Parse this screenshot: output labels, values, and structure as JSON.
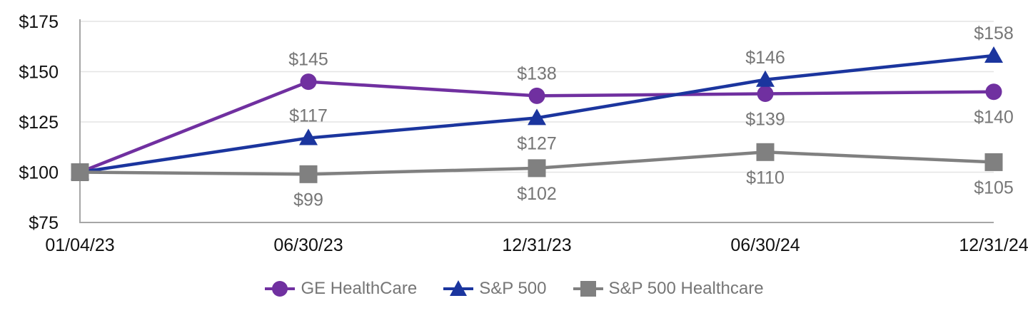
{
  "colors": {
    "axis_line": "#a6a6a6",
    "gridline": "#e4e4e4",
    "tick_text": "#111111",
    "data_label_text": "#767676",
    "ge_purple": "#7030a0",
    "sp500_blue": "#1b359e",
    "sp500_healthcare_gray": "#808080"
  },
  "chart_data": {
    "type": "line",
    "title": "",
    "xlabel": "",
    "ylabel": "",
    "grid": "horizontal",
    "legend_position": "bottom",
    "categories": [
      "01/04/23",
      "06/30/23",
      "12/31/23",
      "06/30/24",
      "12/31/24"
    ],
    "ylim": [
      75,
      175
    ],
    "yticks": [
      {
        "value": 175,
        "label": "$175"
      },
      {
        "value": 150,
        "label": "$150"
      },
      {
        "value": 125,
        "label": "$125"
      },
      {
        "value": 100,
        "label": "$100"
      },
      {
        "value": 75,
        "label": "$75"
      }
    ],
    "series": [
      {
        "name": "GE HealthCare",
        "color": "#7030a0",
        "marker": "circle",
        "values": [
          100,
          145,
          138,
          139,
          140
        ],
        "data_labels": [
          null,
          {
            "text": "$145",
            "position": "above"
          },
          {
            "text": "$138",
            "position": "above"
          },
          {
            "text": "$139",
            "position": "below"
          },
          {
            "text": "$140",
            "position": "below"
          }
        ]
      },
      {
        "name": "S&P 500",
        "color": "#1b359e",
        "marker": "triangle",
        "values": [
          100,
          117,
          127,
          146,
          158
        ],
        "data_labels": [
          null,
          {
            "text": "$117",
            "position": "above"
          },
          {
            "text": "$127",
            "position": "below"
          },
          {
            "text": "$146",
            "position": "above"
          },
          {
            "text": "$158",
            "position": "above"
          }
        ]
      },
      {
        "name": "S&P 500 Healthcare",
        "color": "#808080",
        "marker": "square",
        "values": [
          100,
          99,
          102,
          110,
          105
        ],
        "data_labels": [
          null,
          {
            "text": "$99",
            "position": "below"
          },
          {
            "text": "$102",
            "position": "below"
          },
          {
            "text": "$110",
            "position": "below"
          },
          {
            "text": "$105",
            "position": "below"
          }
        ]
      }
    ]
  }
}
